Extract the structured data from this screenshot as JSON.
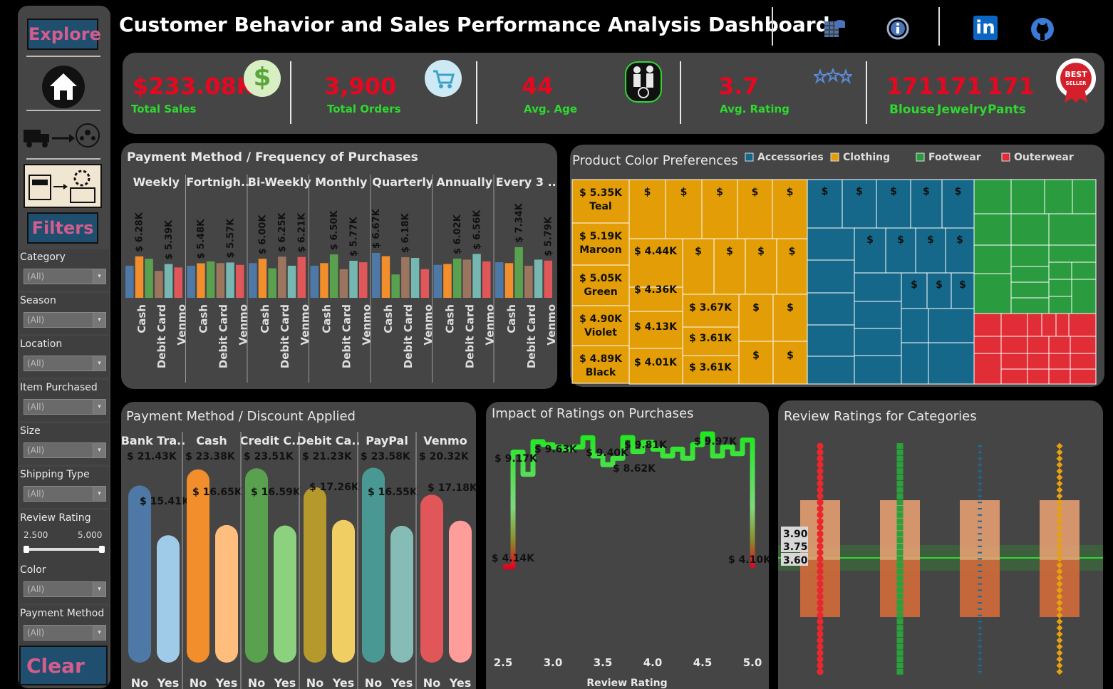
{
  "header": {
    "title": "Customer Behavior and Sales Performance Analysis Dashboard",
    "icons": [
      "database-icon",
      "info-icon",
      "linkedin-icon",
      "github-icon"
    ],
    "linkedin_text": "in"
  },
  "sidebar": {
    "explore_label": "Explore",
    "filters_label": "Filters",
    "clear_label": "Clear",
    "filters": [
      {
        "label": "Category",
        "value": "(All)"
      },
      {
        "label": "Season",
        "value": "(All)"
      },
      {
        "label": "Location",
        "value": "(All)"
      },
      {
        "label": "Item Purchased",
        "value": "(All)"
      },
      {
        "label": "Size",
        "value": "(All)"
      },
      {
        "label": "Shipping Type",
        "value": "(All)"
      },
      {
        "label": "Review Rating",
        "min": "2.500",
        "max": "5.000"
      },
      {
        "label": "Color",
        "value": "(All)"
      },
      {
        "label": "Payment Method",
        "value": "(All)"
      }
    ],
    "dropdown_arrow": "▾"
  },
  "kpis": [
    {
      "value": "$233.08K",
      "label": "Total Sales",
      "icon": "dollar-icon"
    },
    {
      "value": "3,900",
      "label": "Total Orders",
      "icon": "cart-icon"
    },
    {
      "value": "44",
      "label": "Avg. Age",
      "icon": "age-icon"
    },
    {
      "value": "3.7",
      "label": "Avg. Rating",
      "icon": "stars-icon"
    }
  ],
  "best_sellers": [
    {
      "value": "171",
      "label": "Blouse"
    },
    {
      "value": "171",
      "label": "Jewelry"
    },
    {
      "value": "171",
      "label": "Pants"
    }
  ],
  "best_seller_badge": {
    "top": "BEST",
    "bottom": "SELLER"
  },
  "kpi_icon_glyphs": {
    "dollar": "$"
  },
  "colors": {
    "cash": "#4e79a7",
    "debit": "#f28e2b",
    "venmo_g": "#59a14f",
    "brown": "#9c755f",
    "teal": "#76b7b2",
    "red": "#e15759",
    "orange_tree": "#e39d07",
    "blue_tree": "#15688a",
    "green_tree": "#2a9c3f",
    "red_tree": "#e12d35"
  },
  "frequency_chart": {
    "title": "Payment Method / Frequency of Purchases",
    "groups": [
      "Weekly",
      "Fortnigh..",
      "Bi-Weekly",
      "Monthly",
      "Quarterly",
      "Annually",
      "Every 3 .."
    ],
    "axis_labels": [
      "Cash",
      "Debit Card",
      "Venmo"
    ],
    "chart_data": {
      "type": "bar",
      "categories": [
        "Weekly",
        "Fortnightly",
        "Bi-Weekly",
        "Monthly",
        "Quarterly",
        "Annually",
        "Every 3 Months"
      ],
      "series_colors": [
        "#4e79a7",
        "#f28e2b",
        "#59a14f",
        "#9c755f",
        "#76b7b2",
        "#e15759"
      ],
      "values": [
        [
          5.2,
          6.28,
          6.0,
          4.6,
          5.39,
          5.0
        ],
        [
          5.2,
          5.48,
          5.7,
          5.5,
          5.57,
          5.3
        ],
        [
          5.5,
          6.0,
          4.9,
          6.25,
          5.2,
          6.21
        ],
        [
          5.2,
          5.5,
          6.5,
          4.8,
          5.77,
          5.6
        ],
        [
          6.67,
          6.3,
          4.2,
          6.18,
          6.1,
          4.8
        ],
        [
          5.3,
          5.4,
          6.02,
          5.9,
          6.56,
          5.7
        ],
        [
          5.6,
          5.5,
          7.34,
          5.2,
          5.9,
          5.79
        ]
      ],
      "labels": [
        [
          "",
          "$ 6.28K",
          "",
          "",
          "$ 5.39K",
          ""
        ],
        [
          "",
          "$ 5.48K",
          "",
          "",
          "$ 5.57K",
          ""
        ],
        [
          "",
          "$ 6.00K",
          "",
          "$ 6.25K",
          "",
          "$ 6.21K"
        ],
        [
          "",
          "",
          "$ 6.50K",
          "",
          "$ 5.77K",
          ""
        ],
        [
          "$ 6.67K",
          "",
          "",
          "$ 6.18K",
          "",
          ""
        ],
        [
          "",
          "",
          "$ 6.02K",
          "",
          "$ 6.56K",
          ""
        ],
        [
          "",
          "",
          "$ 7.34K",
          "",
          "",
          "$ 5.79K"
        ]
      ]
    }
  },
  "treemap": {
    "title": "Product Color Preferences",
    "legend": [
      {
        "name": "Accessories",
        "color": "#15688a"
      },
      {
        "name": "Clothing",
        "color": "#e39d07"
      },
      {
        "name": "Footwear",
        "color": "#2a9c3f"
      },
      {
        "name": "Outerwear",
        "color": "#e12d35"
      }
    ],
    "top_colors": [
      {
        "value": "$ 5.35K",
        "name": "Teal"
      },
      {
        "value": "$ 5.19K",
        "name": "Maroon"
      },
      {
        "value": "$ 5.05K",
        "name": "Green"
      },
      {
        "value": "$ 4.90K",
        "name": "Violet"
      },
      {
        "value": "$ 4.89K",
        "name": "Black"
      }
    ],
    "mid_values": [
      "$ 4.44K",
      "$ 4.36K",
      "$ 4.13K",
      "$ 4.01K",
      "$ 3.67K",
      "$ 3.61K",
      "$ 3.61K"
    ],
    "dollar": "$"
  },
  "discount_chart": {
    "title": "Payment Method / Discount Applied",
    "groups": [
      "Bank Tra..",
      "Cash",
      "Credit C..",
      "Debit Ca..",
      "PayPal",
      "Venmo"
    ],
    "x_labels": [
      "No",
      "Yes"
    ],
    "chart_data": {
      "type": "bar",
      "categories": [
        "Bank Transfer",
        "Cash",
        "Credit Card",
        "Debit Card",
        "PayPal",
        "Venmo"
      ],
      "series": [
        {
          "name": "No",
          "values": [
            21.43,
            23.38,
            23.51,
            21.23,
            23.58,
            20.32
          ]
        },
        {
          "name": "Yes",
          "values": [
            15.41,
            16.65,
            16.59,
            17.26,
            16.55,
            17.18
          ]
        }
      ],
      "labels_no": [
        "$ 21.43K",
        "$ 23.38K",
        "$ 23.51K",
        "$ 21.23K",
        "$ 23.58K",
        "$ 20.32K"
      ],
      "labels_yes": [
        "$ 15.41K",
        "$ 16.65K",
        "$ 16.59K",
        "$ 17.26K",
        "$ 16.55K",
        "$ 17.18K"
      ],
      "colors_no": [
        "#4e79a7",
        "#f28e2b",
        "#59a14f",
        "#b6992d",
        "#499894",
        "#e15759"
      ],
      "colors_yes": [
        "#a0cbe8",
        "#ffbe7d",
        "#8cd17d",
        "#f1ce63",
        "#86bcb6",
        "#ff9d9a"
      ]
    }
  },
  "ratings_chart": {
    "title": "Impact of Ratings on Purchases",
    "xlabel": "Review Rating",
    "x_ticks": [
      "2.5",
      "3.0",
      "3.5",
      "4.0",
      "4.5",
      "5.0"
    ],
    "labels": [
      "$ 4.14K",
      "$ 9.17K",
      "$ 9.63K",
      "$ 9.40K",
      "$ 9.81K",
      "$ 8.62K",
      "$ 9.97K",
      "$ 4.10K"
    ],
    "chart_data": {
      "type": "line",
      "x": [
        2.5,
        2.6,
        2.7,
        2.8,
        2.9,
        3.0,
        3.1,
        3.2,
        3.3,
        3.4,
        3.5,
        3.6,
        3.7,
        3.8,
        3.9,
        4.0,
        4.1,
        4.2,
        4.3,
        4.4,
        4.5,
        4.6,
        4.7,
        4.8,
        4.9,
        5.0
      ],
      "y": [
        4.14,
        9.17,
        8.2,
        9.63,
        9.5,
        9.4,
        9.3,
        9.4,
        9.8,
        9.0,
        8.62,
        8.9,
        9.81,
        9.2,
        9.6,
        9.3,
        9.0,
        9.3,
        8.9,
        9.5,
        9.97,
        9.0,
        9.4,
        9.1,
        9.7,
        4.1
      ]
    }
  },
  "review_chart": {
    "title": "Review Ratings for Categories",
    "ref_labels": [
      "3.90",
      "3.75",
      "3.60"
    ],
    "chart_data": {
      "type": "scatter",
      "categories": [
        "Outerwear",
        "Footwear",
        "Accessories",
        "Clothing"
      ],
      "dot_colors": [
        "#e8282e",
        "#2aa13c",
        "#1f6a8f",
        "#e7a10f"
      ],
      "box_range": [
        3.2,
        4.3
      ],
      "ref_lines": [
        3.9,
        3.75,
        3.6
      ]
    }
  }
}
